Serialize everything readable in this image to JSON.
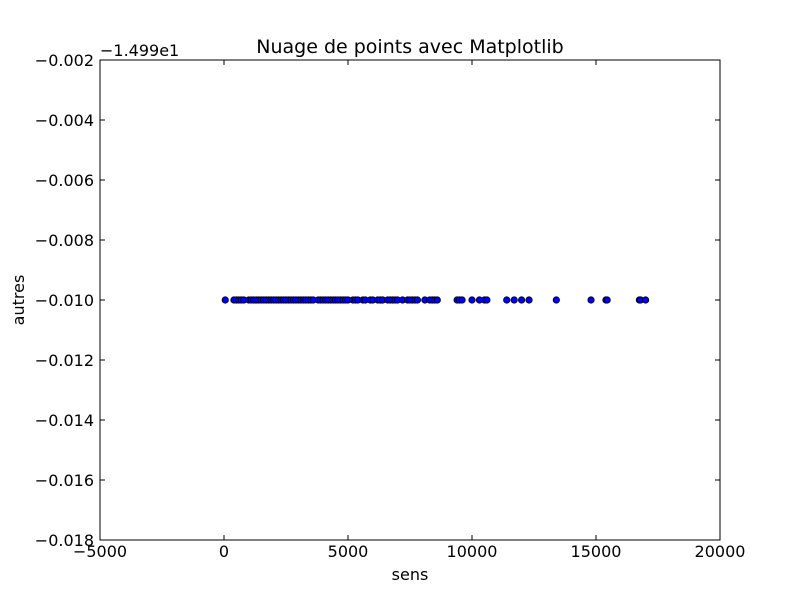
{
  "chart_data": {
    "type": "scatter",
    "title": "Nuage de points avec Matplotlib",
    "xlabel": "sens",
    "ylabel": "autres",
    "y_offset_label": "−1.499e1",
    "xlim": [
      -5000,
      20000
    ],
    "ylim": [
      -0.018,
      -0.002
    ],
    "x_ticks": [
      -5000,
      0,
      5000,
      10000,
      15000,
      20000
    ],
    "x_tick_labels": [
      "−5000",
      "0",
      "5000",
      "10000",
      "15000",
      "20000"
    ],
    "y_ticks": [
      -0.002,
      -0.004,
      -0.006,
      -0.008,
      -0.01,
      -0.012,
      -0.014,
      -0.016,
      -0.018
    ],
    "y_tick_labels": [
      "−0.002",
      "−0.004",
      "−0.006",
      "−0.008",
      "−0.010",
      "−0.012",
      "−0.014",
      "−0.016",
      "−0.018"
    ],
    "grid": false,
    "marker_color": "#0000ff",
    "marker_edge_color": "#000000",
    "series": [
      {
        "x": [
          50,
          400,
          500,
          600,
          700,
          800,
          1000,
          1100,
          1200,
          1300,
          1400,
          1500,
          1600,
          1700,
          1800,
          1900,
          2000,
          2100,
          2200,
          2300,
          2400,
          2500,
          2600,
          2700,
          2800,
          2900,
          3000,
          3100,
          3200,
          3300,
          3400,
          3500,
          3600,
          3800,
          3900,
          4000,
          4100,
          4200,
          4300,
          4400,
          4500,
          4600,
          4700,
          4800,
          4900,
          5000,
          5200,
          5300,
          5400,
          5600,
          5700,
          5900,
          6000,
          6200,
          6300,
          6400,
          6600,
          6700,
          6800,
          6900,
          7000,
          7200,
          7400,
          7500,
          7600,
          7700,
          7800,
          8100,
          8300,
          8400,
          8500,
          8600,
          9400,
          9500,
          9600,
          10000,
          10300,
          10500,
          10600,
          11400,
          11700,
          12000,
          12300,
          13400,
          14800,
          15400,
          15450,
          16750,
          16800,
          17000
        ],
        "y": [
          -0.01,
          -0.01,
          -0.01,
          -0.01,
          -0.01,
          -0.01,
          -0.01,
          -0.01,
          -0.01,
          -0.01,
          -0.01,
          -0.01,
          -0.01,
          -0.01,
          -0.01,
          -0.01,
          -0.01,
          -0.01,
          -0.01,
          -0.01,
          -0.01,
          -0.01,
          -0.01,
          -0.01,
          -0.01,
          -0.01,
          -0.01,
          -0.01,
          -0.01,
          -0.01,
          -0.01,
          -0.01,
          -0.01,
          -0.01,
          -0.01,
          -0.01,
          -0.01,
          -0.01,
          -0.01,
          -0.01,
          -0.01,
          -0.01,
          -0.01,
          -0.01,
          -0.01,
          -0.01,
          -0.01,
          -0.01,
          -0.01,
          -0.01,
          -0.01,
          -0.01,
          -0.01,
          -0.01,
          -0.01,
          -0.01,
          -0.01,
          -0.01,
          -0.01,
          -0.01,
          -0.01,
          -0.01,
          -0.01,
          -0.01,
          -0.01,
          -0.01,
          -0.01,
          -0.01,
          -0.01,
          -0.01,
          -0.01,
          -0.01,
          -0.01,
          -0.01,
          -0.01,
          -0.01,
          -0.01,
          -0.01,
          -0.01,
          -0.01,
          -0.01,
          -0.01,
          -0.01,
          -0.01,
          -0.01,
          -0.01,
          -0.01,
          -0.01,
          -0.01,
          -0.01
        ]
      }
    ]
  }
}
